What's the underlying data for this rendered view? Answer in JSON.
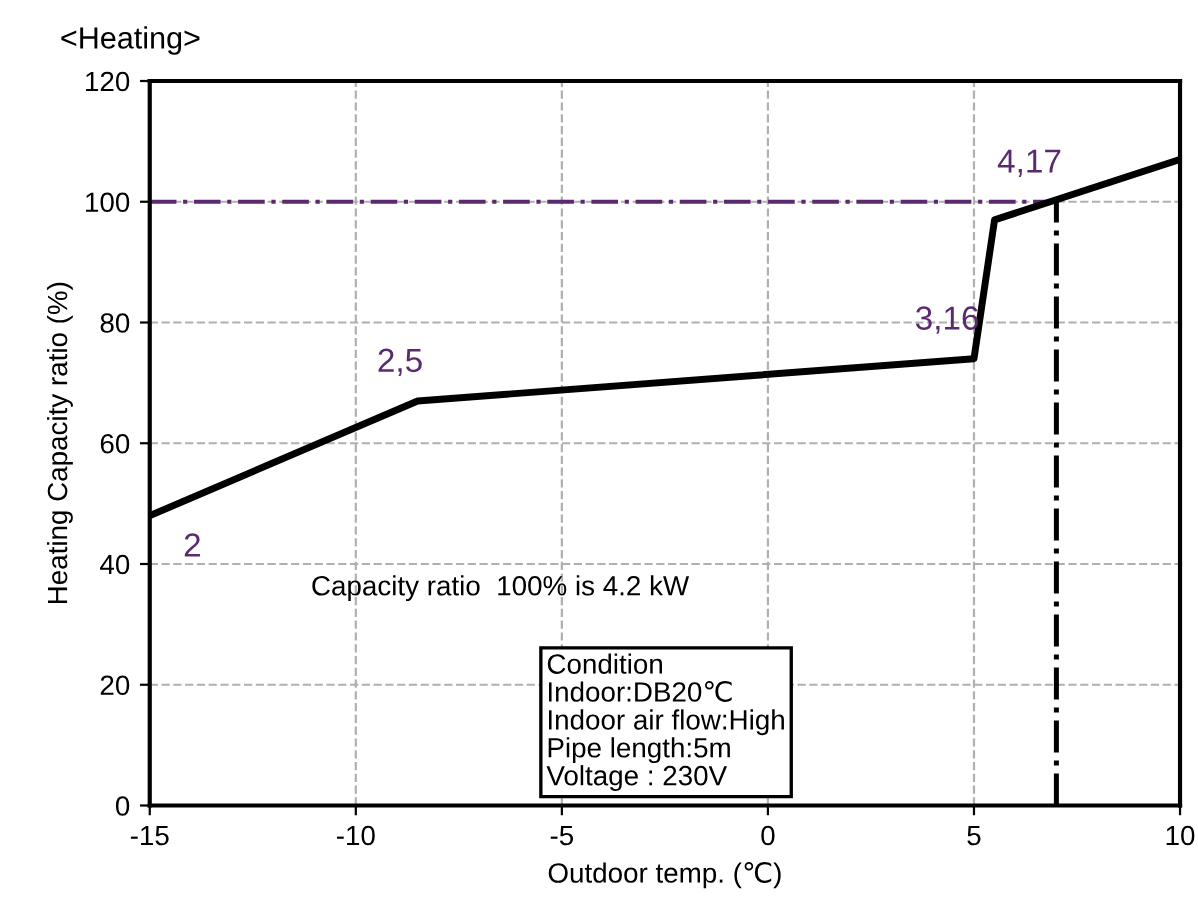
{
  "chart_data": {
    "type": "line",
    "title": "<Heating>",
    "xlabel": "Outdoor temp. (℃)",
    "ylabel": "Heating Capacity ratio (%)",
    "x": [
      -15,
      -8.5,
      5,
      5.5,
      10
    ],
    "series": [
      {
        "color": "#000000",
        "values": [
          48,
          67,
          74,
          97,
          107
        ]
      }
    ],
    "xlim": [
      -15,
      10
    ],
    "xticks": [
      -15,
      -10,
      -5,
      0,
      5,
      10
    ],
    "ylim": [
      0,
      120
    ],
    "yticks": [
      0,
      20,
      40,
      60,
      80,
      100,
      120
    ],
    "grid": true,
    "marker": "none",
    "line_style": "solid",
    "ref_lines": [
      {
        "axis": "y",
        "value": 100,
        "color": "#5b2a6e",
        "line_style": "dashdot"
      },
      {
        "axis": "x",
        "value": 7,
        "color": "#000000",
        "line_style": "dashdot"
      }
    ],
    "annotations": [
      {
        "text": "2",
        "x": -15,
        "y": 48
      },
      {
        "text": "2,5",
        "x": -8.5,
        "y": 67
      },
      {
        "text": "3,16",
        "x": 5,
        "y": 74
      },
      {
        "text": "4,17",
        "x": 7,
        "y": 100
      },
      "Capacity ratio  100% is 4.2 kW",
      "Condition\nIndoor:DB20℃\nIndoor air flow:High\nPipe length:5m\nVoltage : 230V"
    ]
  }
}
